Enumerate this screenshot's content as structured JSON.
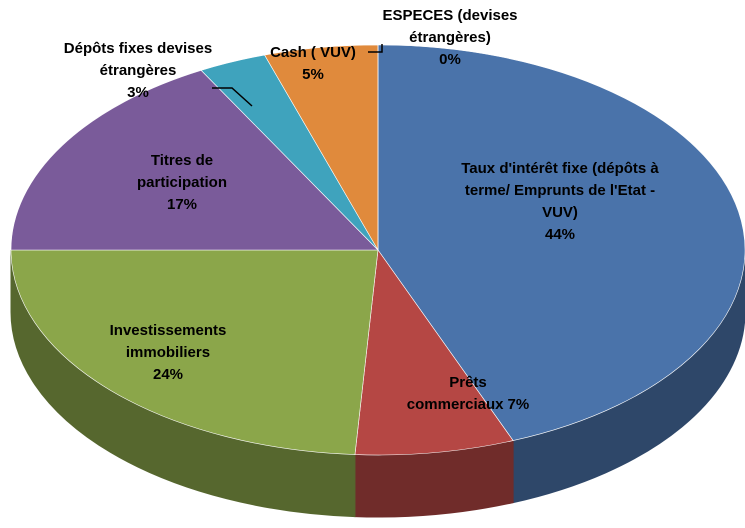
{
  "chart_data": {
    "type": "pie",
    "categories": [
      "Taux d'intérêt fixe (dépôts à terme/ Emprunts de l'Etat - VUV)",
      "Prêts commerciaux",
      "Investissements immobiliers",
      "Titres de participation",
      "Dépôts fixes devises étrangères",
      "Cash ( VUV)",
      "ESPECES (devises étrangères)"
    ],
    "values": [
      44,
      7,
      24,
      17,
      3,
      5,
      0
    ],
    "value_labels": [
      "44%",
      "7%",
      "24%",
      "17%",
      "3%",
      "5%",
      "0%"
    ],
    "colors": [
      "#4a73aa",
      "#b54744",
      "#8ba64a",
      "#7a5b9a",
      "#3fa3bd",
      "#e08a3c",
      "#c9d6e8"
    ]
  }
}
